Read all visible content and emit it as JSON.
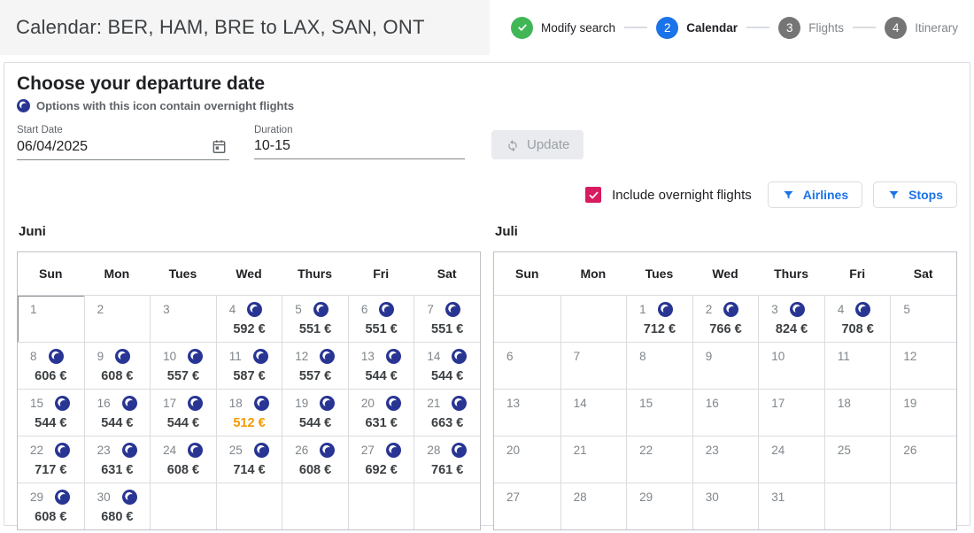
{
  "header": {
    "title": "Calendar: BER, HAM, BRE to LAX, SAN, ONT",
    "steps": [
      {
        "num": "",
        "label": "Modify search",
        "state": "done"
      },
      {
        "num": "2",
        "label": "Calendar",
        "state": "active"
      },
      {
        "num": "3",
        "label": "Flights",
        "state": "pending"
      },
      {
        "num": "4",
        "label": "Itinerary",
        "state": "pending"
      }
    ]
  },
  "panel": {
    "heading": "Choose your departure date",
    "overnight_note": "Options with this icon contain overnight flights",
    "start_date": {
      "label": "Start Date",
      "value": "06/04/2025"
    },
    "duration": {
      "label": "Duration",
      "value": "10-15"
    },
    "update_button": "Update",
    "include_overnight": {
      "label": "Include overnight flights",
      "checked": true
    },
    "airlines_button": "Airlines",
    "stops_button": "Stops"
  },
  "colors": {
    "accent_blue": "#1a73e8",
    "step_done_green": "#41b656",
    "moon_navy": "#283593",
    "checkbox_pink": "#d81b60",
    "price_highlight_orange": "#f29900",
    "title_block_bg": "#f5f5f5"
  },
  "calendars": [
    {
      "month": "Juni",
      "day_headers": [
        "Sun",
        "Mon",
        "Tues",
        "Wed",
        "Thurs",
        "Fri",
        "Sat"
      ],
      "weeks": [
        [
          {
            "day": "1",
            "focused": true
          },
          {
            "day": "2"
          },
          {
            "day": "3"
          },
          {
            "day": "4",
            "price": "592 €",
            "overnight": true
          },
          {
            "day": "5",
            "price": "551 €",
            "overnight": true
          },
          {
            "day": "6",
            "price": "551 €",
            "overnight": true
          },
          {
            "day": "7",
            "price": "551 €",
            "overnight": true
          }
        ],
        [
          {
            "day": "8",
            "price": "606 €",
            "overnight": true
          },
          {
            "day": "9",
            "price": "608 €",
            "overnight": true
          },
          {
            "day": "10",
            "price": "557 €",
            "overnight": true
          },
          {
            "day": "11",
            "price": "587 €",
            "overnight": true
          },
          {
            "day": "12",
            "price": "557 €",
            "overnight": true
          },
          {
            "day": "13",
            "price": "544 €",
            "overnight": true
          },
          {
            "day": "14",
            "price": "544 €",
            "overnight": true
          }
        ],
        [
          {
            "day": "15",
            "price": "544 €",
            "overnight": true
          },
          {
            "day": "16",
            "price": "544 €",
            "overnight": true
          },
          {
            "day": "17",
            "price": "544 €",
            "overnight": true
          },
          {
            "day": "18",
            "price": "512 €",
            "overnight": true,
            "highlight": true
          },
          {
            "day": "19",
            "price": "544 €",
            "overnight": true
          },
          {
            "day": "20",
            "price": "631 €",
            "overnight": true
          },
          {
            "day": "21",
            "price": "663 €",
            "overnight": true
          }
        ],
        [
          {
            "day": "22",
            "price": "717 €",
            "overnight": true
          },
          {
            "day": "23",
            "price": "631 €",
            "overnight": true
          },
          {
            "day": "24",
            "price": "608 €",
            "overnight": true
          },
          {
            "day": "25",
            "price": "714 €",
            "overnight": true
          },
          {
            "day": "26",
            "price": "608 €",
            "overnight": true
          },
          {
            "day": "27",
            "price": "692 €",
            "overnight": true
          },
          {
            "day": "28",
            "price": "761 €",
            "overnight": true
          }
        ],
        [
          {
            "day": "29",
            "price": "608 €",
            "overnight": true
          },
          {
            "day": "30",
            "price": "680 €",
            "overnight": true
          },
          {},
          {},
          {},
          {},
          {}
        ]
      ]
    },
    {
      "month": "Juli",
      "day_headers": [
        "Sun",
        "Mon",
        "Tues",
        "Wed",
        "Thurs",
        "Fri",
        "Sat"
      ],
      "weeks": [
        [
          {},
          {},
          {
            "day": "1",
            "price": "712 €",
            "overnight": true
          },
          {
            "day": "2",
            "price": "766 €",
            "overnight": true
          },
          {
            "day": "3",
            "price": "824 €",
            "overnight": true
          },
          {
            "day": "4",
            "price": "708 €",
            "overnight": true
          },
          {
            "day": "5"
          }
        ],
        [
          {
            "day": "6"
          },
          {
            "day": "7"
          },
          {
            "day": "8"
          },
          {
            "day": "9"
          },
          {
            "day": "10"
          },
          {
            "day": "11"
          },
          {
            "day": "12"
          }
        ],
        [
          {
            "day": "13"
          },
          {
            "day": "14"
          },
          {
            "day": "15"
          },
          {
            "day": "16"
          },
          {
            "day": "17"
          },
          {
            "day": "18"
          },
          {
            "day": "19"
          }
        ],
        [
          {
            "day": "20"
          },
          {
            "day": "21"
          },
          {
            "day": "22"
          },
          {
            "day": "23"
          },
          {
            "day": "24"
          },
          {
            "day": "25"
          },
          {
            "day": "26"
          }
        ],
        [
          {
            "day": "27"
          },
          {
            "day": "28"
          },
          {
            "day": "29"
          },
          {
            "day": "30"
          },
          {
            "day": "31"
          },
          {},
          {}
        ]
      ]
    }
  ]
}
